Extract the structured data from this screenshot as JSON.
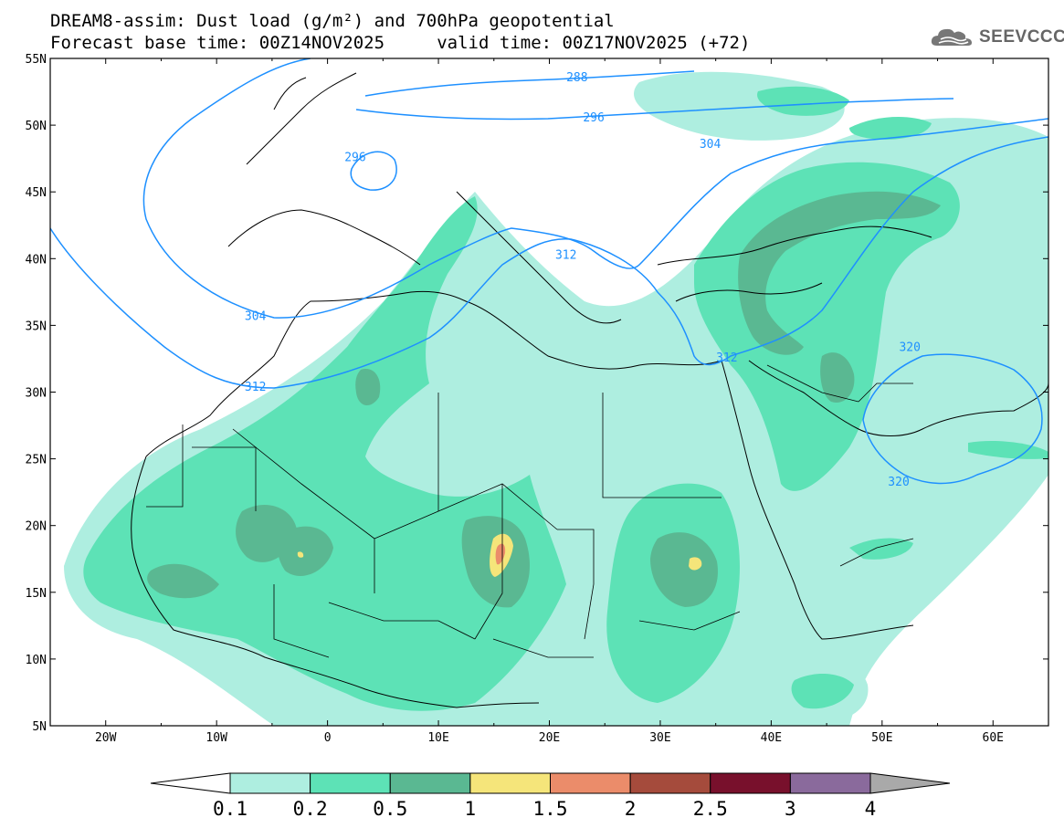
{
  "title": {
    "line1": "DREAM8-assim: Dust load (g/m²) and 700hPa geopotential",
    "line2": "Forecast base time: 00Z14NOV2025     valid time: 00Z17NOV2025 (+72)"
  },
  "logo": {
    "text": "SEEVCCC",
    "icon": "cloud-icon",
    "color": "#666666"
  },
  "axes": {
    "lon_ticks": [
      "20W",
      "10W",
      "0",
      "10E",
      "20E",
      "30E",
      "40E",
      "50E",
      "60E"
    ],
    "lon_values": [
      -20,
      -10,
      0,
      10,
      20,
      30,
      40,
      50,
      60
    ],
    "lat_ticks": [
      "55N",
      "50N",
      "45N",
      "40N",
      "35N",
      "30N",
      "25N",
      "20N",
      "15N",
      "10N",
      "5N"
    ],
    "lat_values": [
      55,
      50,
      45,
      40,
      35,
      30,
      25,
      20,
      15,
      10,
      5
    ],
    "lon_range": [
      -25,
      65
    ],
    "lat_range": [
      5,
      55
    ]
  },
  "contours": {
    "color": "#1e90ff",
    "labels": [
      {
        "text": "288",
        "lon": 22.5,
        "lat": 53.5
      },
      {
        "text": "296",
        "lon": 24.0,
        "lat": 50.5
      },
      {
        "text": "304",
        "lon": 34.5,
        "lat": 48.5
      },
      {
        "text": "296",
        "lon": 2.5,
        "lat": 47.5
      },
      {
        "text": "312",
        "lon": 21.5,
        "lat": 40.2
      },
      {
        "text": "304",
        "lon": -6.5,
        "lat": 35.6
      },
      {
        "text": "312",
        "lon": -6.5,
        "lat": 30.3
      },
      {
        "text": "312",
        "lon": 36.0,
        "lat": 32.5
      },
      {
        "text": "320",
        "lon": 52.5,
        "lat": 33.3
      },
      {
        "text": "320",
        "lon": 51.5,
        "lat": 23.2
      }
    ]
  },
  "colorbar": {
    "labels": [
      "0.1",
      "0.2",
      "0.5",
      "1",
      "1.5",
      "2",
      "2.5",
      "3",
      "4"
    ],
    "colors": [
      "#aeeee0",
      "#5de2b6",
      "#5ab892",
      "#f5e57a",
      "#eb8c6a",
      "#a54b3c",
      "#78102c",
      "#8a6a9c"
    ],
    "under_color": "#ffffff",
    "over_color": "#a9a9a9"
  },
  "dust_colors": {
    "light": "#aeeee0",
    "medium": "#5de2b6",
    "dark": "#5ab892",
    "yellow": "#f5e57a",
    "orange": "#eb8c6a",
    "red": "#a54b3c"
  }
}
